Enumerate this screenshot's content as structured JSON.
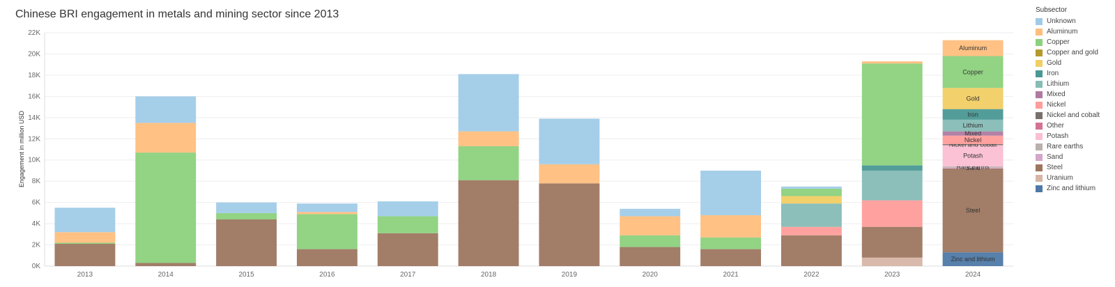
{
  "chart_data": {
    "type": "bar",
    "stacked": true,
    "title": "Chinese BRI engagement in metals and mining sector since 2013",
    "ylabel": "Engagement in million USD",
    "xlabel": "",
    "ylim": [
      0,
      22000
    ],
    "yticks": [
      0,
      2000,
      4000,
      6000,
      8000,
      10000,
      12000,
      14000,
      16000,
      18000,
      20000,
      22000
    ],
    "ytick_labels": [
      "0K",
      "2K",
      "4K",
      "6K",
      "8K",
      "10K",
      "12K",
      "14K",
      "16K",
      "18K",
      "20K",
      "22K"
    ],
    "grid": true,
    "legend_title": "Subsector",
    "legend_position": "right",
    "categories": [
      "2013",
      "2014",
      "2015",
      "2016",
      "2017",
      "2018",
      "2019",
      "2020",
      "2021",
      "2022",
      "2023",
      "2024"
    ],
    "series": [
      {
        "name": "Unknown",
        "color": "#a0cbe8",
        "values": [
          2300,
          2500,
          1000,
          800,
          1400,
          5400,
          4300,
          700,
          4200,
          200,
          0,
          0
        ]
      },
      {
        "name": "Aluminum",
        "color": "#ffbe7d",
        "values": [
          1000,
          2800,
          0,
          200,
          0,
          1400,
          1800,
          1800,
          2100,
          0,
          200,
          1500
        ]
      },
      {
        "name": "Copper",
        "color": "#8cd17d",
        "values": [
          100,
          10400,
          600,
          3300,
          1600,
          3200,
          0,
          1100,
          1100,
          700,
          9600,
          3000
        ]
      },
      {
        "name": "Copper and gold",
        "color": "#b6992d",
        "values": [
          0,
          0,
          0,
          0,
          0,
          0,
          0,
          0,
          0,
          0,
          0,
          0
        ]
      },
      {
        "name": "Gold",
        "color": "#f1ce63",
        "values": [
          0,
          0,
          0,
          0,
          0,
          0,
          0,
          0,
          0,
          700,
          0,
          2000
        ]
      },
      {
        "name": "Iron",
        "color": "#499894",
        "values": [
          0,
          0,
          0,
          0,
          0,
          0,
          0,
          0,
          0,
          0,
          500,
          1000
        ]
      },
      {
        "name": "Lithium",
        "color": "#86bcb6",
        "values": [
          0,
          0,
          0,
          0,
          0,
          0,
          0,
          0,
          0,
          2200,
          2800,
          1100
        ]
      },
      {
        "name": "Mixed",
        "color": "#b07aa1",
        "values": [
          0,
          0,
          0,
          0,
          0,
          0,
          0,
          0,
          0,
          0,
          0,
          400
        ]
      },
      {
        "name": "Nickel",
        "color": "#ff9d9a",
        "values": [
          0,
          0,
          0,
          0,
          0,
          0,
          0,
          0,
          0,
          800,
          2500,
          800
        ]
      },
      {
        "name": "Nickel and cobalt",
        "color": "#79706e",
        "values": [
          0,
          0,
          0,
          0,
          0,
          0,
          0,
          0,
          0,
          0,
          0,
          100
        ]
      },
      {
        "name": "Other",
        "color": "#d37295",
        "values": [
          0,
          0,
          0,
          0,
          0,
          0,
          0,
          0,
          0,
          0,
          0,
          0
        ]
      },
      {
        "name": "Potash",
        "color": "#fabfd2",
        "values": [
          0,
          0,
          0,
          0,
          0,
          0,
          0,
          0,
          0,
          0,
          0,
          2000
        ]
      },
      {
        "name": "Rare earths",
        "color": "#bab0ac",
        "values": [
          0,
          0,
          0,
          0,
          0,
          0,
          0,
          0,
          0,
          0,
          0,
          100
        ]
      },
      {
        "name": "Sand",
        "color": "#d4a6c8",
        "values": [
          0,
          0,
          0,
          0,
          0,
          0,
          0,
          0,
          0,
          0,
          0,
          100
        ]
      },
      {
        "name": "Steel",
        "color": "#9d7660",
        "values": [
          2100,
          300,
          4400,
          1600,
          3100,
          8100,
          7800,
          1800,
          1600,
          2900,
          2900,
          7900
        ]
      },
      {
        "name": "Uranium",
        "color": "#d7b5a6",
        "values": [
          0,
          0,
          0,
          0,
          0,
          0,
          0,
          0,
          0,
          0,
          800,
          0
        ]
      },
      {
        "name": "Zinc and lithium",
        "color": "#4e79a7",
        "values": [
          0,
          0,
          0,
          0,
          0,
          0,
          0,
          0,
          0,
          0,
          0,
          1300
        ]
      }
    ]
  }
}
